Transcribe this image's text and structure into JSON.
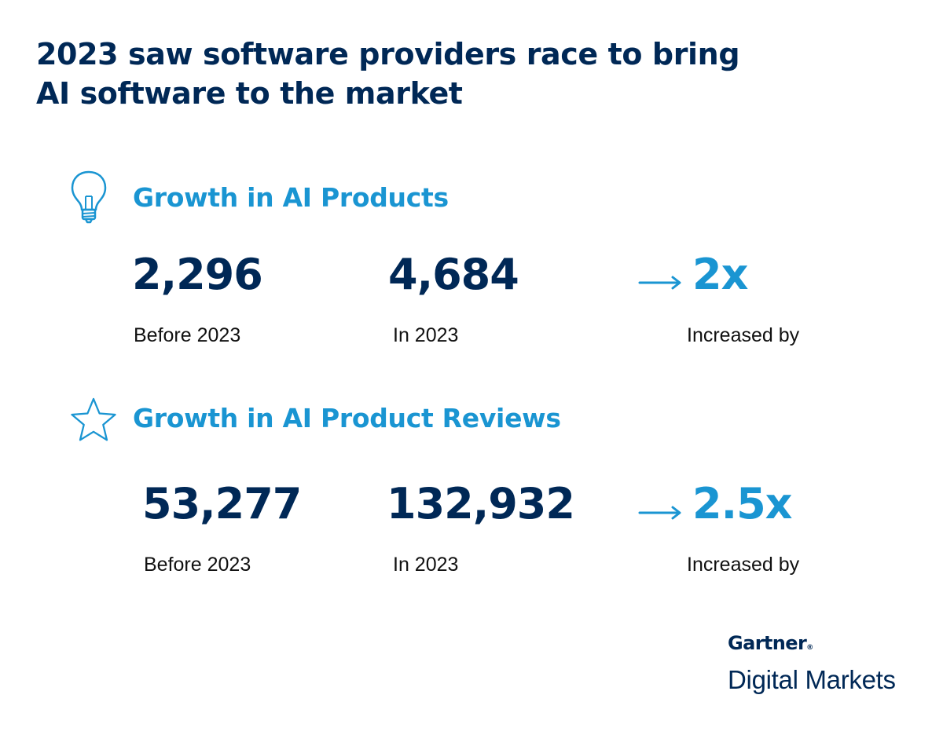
{
  "title": "2023 saw software providers race to bring AI software to the market",
  "colors": {
    "navy": "#002856",
    "accent": "#1a95d2",
    "text": "#111111"
  },
  "sections": [
    {
      "icon": "lightbulb-icon",
      "heading": "Growth in AI Products",
      "before_value": "2,296",
      "before_label": "Before 2023",
      "in_value": "4,684",
      "in_label": "In 2023",
      "increase_value": "2x",
      "increase_label": "Increased by"
    },
    {
      "icon": "star-icon",
      "heading": "Growth in AI Product Reviews",
      "before_value": "53,277",
      "before_label": "Before 2023",
      "in_value": "132,932",
      "in_label": "In 2023",
      "increase_value": "2.5x",
      "increase_label": "Increased by"
    }
  ],
  "brand": {
    "top": "Gartner",
    "registered": "®",
    "bottom": "Digital Markets"
  }
}
